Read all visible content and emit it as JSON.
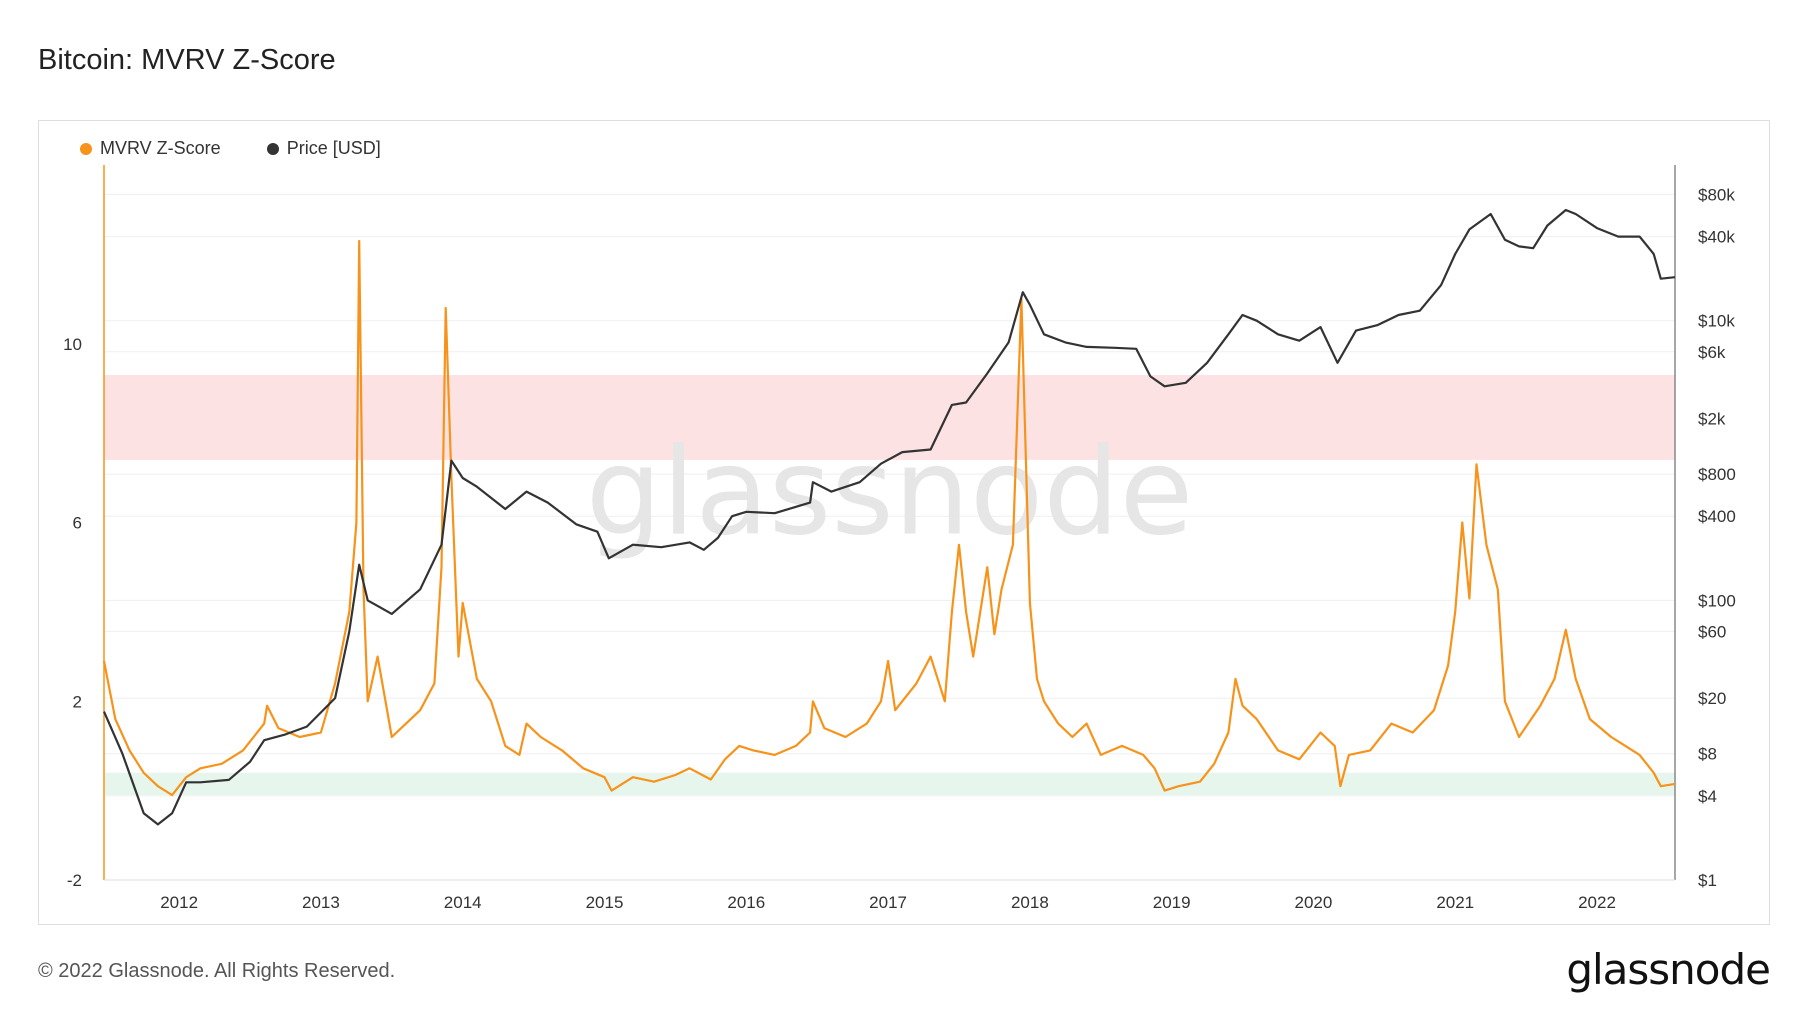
{
  "title": "Bitcoin: MVRV Z-Score",
  "legend": [
    {
      "label": "MVRV Z-Score",
      "color": "#f7931a"
    },
    {
      "label": "Price [USD]",
      "color": "#333333"
    }
  ],
  "watermark": "glassnode",
  "footer": {
    "copyright": "© 2022 Glassnode. All Rights Reserved.",
    "logo": "glassnode"
  },
  "chart_data": {
    "type": "line",
    "title": "Bitcoin: MVRV Z-Score",
    "xlabel": "",
    "ylabel": "",
    "x_ticks": [
      "2012",
      "2013",
      "2014",
      "2015",
      "2016",
      "2017",
      "2018",
      "2019",
      "2020",
      "2021",
      "2022"
    ],
    "x_range": [
      2011.47,
      2022.55
    ],
    "y_left": {
      "ticks": [
        -2,
        2,
        6,
        10
      ],
      "range": [
        -2.0,
        14.0
      ]
    },
    "y_right": {
      "scale": "log",
      "ticks": [
        "$1",
        "$4",
        "$8",
        "$20",
        "$60",
        "$100",
        "$400",
        "$800",
        "$2k",
        "$6k",
        "$10k",
        "$40k",
        "$80k"
      ],
      "tick_values": [
        1,
        4,
        8,
        20,
        60,
        100,
        400,
        800,
        2000,
        6000,
        10000,
        40000,
        80000
      ],
      "range": [
        1,
        130000
      ]
    },
    "bands": [
      {
        "name": "red-zone",
        "from": 7.4,
        "to": 9.3,
        "color": "#fde2e4"
      },
      {
        "name": "green-zone",
        "from": -0.1,
        "to": 0.4,
        "color": "#e6f6ec"
      }
    ],
    "grid": true,
    "legend_position": "top-left",
    "series": [
      {
        "name": "MVRV Z-Score",
        "axis": "left",
        "color": "#f7931a",
        "points": [
          [
            2011.47,
            2.9
          ],
          [
            2011.55,
            1.6
          ],
          [
            2011.65,
            0.9
          ],
          [
            2011.75,
            0.4
          ],
          [
            2011.85,
            0.1
          ],
          [
            2011.95,
            -0.1
          ],
          [
            2012.05,
            0.3
          ],
          [
            2012.15,
            0.5
          ],
          [
            2012.3,
            0.6
          ],
          [
            2012.45,
            0.9
          ],
          [
            2012.6,
            1.5
          ],
          [
            2012.62,
            1.9
          ],
          [
            2012.7,
            1.4
          ],
          [
            2012.85,
            1.2
          ],
          [
            2013.0,
            1.3
          ],
          [
            2013.1,
            2.4
          ],
          [
            2013.2,
            4.0
          ],
          [
            2013.25,
            6.0
          ],
          [
            2013.27,
            12.3
          ],
          [
            2013.3,
            4.5
          ],
          [
            2013.33,
            2.0
          ],
          [
            2013.4,
            3.0
          ],
          [
            2013.5,
            1.2
          ],
          [
            2013.6,
            1.5
          ],
          [
            2013.7,
            1.8
          ],
          [
            2013.8,
            2.4
          ],
          [
            2013.85,
            5.0
          ],
          [
            2013.88,
            10.8
          ],
          [
            2013.92,
            7.0
          ],
          [
            2013.97,
            3.0
          ],
          [
            2014.0,
            4.2
          ],
          [
            2014.1,
            2.5
          ],
          [
            2014.2,
            2.0
          ],
          [
            2014.3,
            1.0
          ],
          [
            2014.4,
            0.8
          ],
          [
            2014.45,
            1.5
          ],
          [
            2014.55,
            1.2
          ],
          [
            2014.7,
            0.9
          ],
          [
            2014.85,
            0.5
          ],
          [
            2015.0,
            0.3
          ],
          [
            2015.05,
            0.0
          ],
          [
            2015.2,
            0.3
          ],
          [
            2015.35,
            0.2
          ],
          [
            2015.5,
            0.35
          ],
          [
            2015.6,
            0.5
          ],
          [
            2015.75,
            0.25
          ],
          [
            2015.85,
            0.7
          ],
          [
            2015.95,
            1.0
          ],
          [
            2016.05,
            0.9
          ],
          [
            2016.2,
            0.8
          ],
          [
            2016.35,
            1.0
          ],
          [
            2016.45,
            1.3
          ],
          [
            2016.47,
            2.0
          ],
          [
            2016.55,
            1.4
          ],
          [
            2016.7,
            1.2
          ],
          [
            2016.85,
            1.5
          ],
          [
            2016.95,
            2.0
          ],
          [
            2017.0,
            2.9
          ],
          [
            2017.05,
            1.8
          ],
          [
            2017.2,
            2.4
          ],
          [
            2017.3,
            3.0
          ],
          [
            2017.4,
            2.0
          ],
          [
            2017.45,
            4.0
          ],
          [
            2017.5,
            5.5
          ],
          [
            2017.55,
            4.0
          ],
          [
            2017.6,
            3.0
          ],
          [
            2017.7,
            5.0
          ],
          [
            2017.75,
            3.5
          ],
          [
            2017.8,
            4.5
          ],
          [
            2017.88,
            5.5
          ],
          [
            2017.94,
            11.0
          ],
          [
            2018.0,
            4.2
          ],
          [
            2018.05,
            2.5
          ],
          [
            2018.1,
            2.0
          ],
          [
            2018.2,
            1.5
          ],
          [
            2018.3,
            1.2
          ],
          [
            2018.4,
            1.5
          ],
          [
            2018.5,
            0.8
          ],
          [
            2018.65,
            1.0
          ],
          [
            2018.8,
            0.8
          ],
          [
            2018.88,
            0.5
          ],
          [
            2018.95,
            0.0
          ],
          [
            2019.05,
            0.1
          ],
          [
            2019.2,
            0.2
          ],
          [
            2019.3,
            0.6
          ],
          [
            2019.4,
            1.3
          ],
          [
            2019.45,
            2.5
          ],
          [
            2019.5,
            1.9
          ],
          [
            2019.6,
            1.6
          ],
          [
            2019.75,
            0.9
          ],
          [
            2019.9,
            0.7
          ],
          [
            2020.05,
            1.3
          ],
          [
            2020.15,
            1.0
          ],
          [
            2020.19,
            0.1
          ],
          [
            2020.25,
            0.8
          ],
          [
            2020.4,
            0.9
          ],
          [
            2020.55,
            1.5
          ],
          [
            2020.7,
            1.3
          ],
          [
            2020.85,
            1.8
          ],
          [
            2020.95,
            2.8
          ],
          [
            2021.0,
            4.0
          ],
          [
            2021.05,
            6.0
          ],
          [
            2021.1,
            4.3
          ],
          [
            2021.15,
            7.3
          ],
          [
            2021.22,
            5.5
          ],
          [
            2021.3,
            4.5
          ],
          [
            2021.35,
            2.0
          ],
          [
            2021.45,
            1.2
          ],
          [
            2021.6,
            1.9
          ],
          [
            2021.7,
            2.5
          ],
          [
            2021.78,
            3.6
          ],
          [
            2021.85,
            2.5
          ],
          [
            2021.95,
            1.6
          ],
          [
            2022.1,
            1.2
          ],
          [
            2022.2,
            1.0
          ],
          [
            2022.3,
            0.8
          ],
          [
            2022.4,
            0.4
          ],
          [
            2022.45,
            0.1
          ],
          [
            2022.55,
            0.15
          ]
        ]
      },
      {
        "name": "Price [USD]",
        "axis": "right",
        "color": "#333333",
        "points": [
          [
            2011.47,
            16
          ],
          [
            2011.6,
            8
          ],
          [
            2011.75,
            3
          ],
          [
            2011.85,
            2.5
          ],
          [
            2011.95,
            3
          ],
          [
            2012.05,
            5
          ],
          [
            2012.15,
            5
          ],
          [
            2012.35,
            5.2
          ],
          [
            2012.5,
            7
          ],
          [
            2012.6,
            10
          ],
          [
            2012.75,
            11
          ],
          [
            2012.9,
            12.5
          ],
          [
            2013.1,
            20
          ],
          [
            2013.2,
            60
          ],
          [
            2013.27,
            180
          ],
          [
            2013.33,
            100
          ],
          [
            2013.5,
            80
          ],
          [
            2013.7,
            120
          ],
          [
            2013.85,
            250
          ],
          [
            2013.92,
            1000
          ],
          [
            2014.0,
            750
          ],
          [
            2014.1,
            650
          ],
          [
            2014.3,
            450
          ],
          [
            2014.45,
            600
          ],
          [
            2014.6,
            500
          ],
          [
            2014.8,
            350
          ],
          [
            2014.95,
            310
          ],
          [
            2015.03,
            200
          ],
          [
            2015.2,
            250
          ],
          [
            2015.4,
            240
          ],
          [
            2015.6,
            260
          ],
          [
            2015.7,
            230
          ],
          [
            2015.8,
            280
          ],
          [
            2015.9,
            400
          ],
          [
            2016.0,
            430
          ],
          [
            2016.2,
            420
          ],
          [
            2016.45,
            500
          ],
          [
            2016.47,
            700
          ],
          [
            2016.6,
            600
          ],
          [
            2016.8,
            700
          ],
          [
            2016.95,
            950
          ],
          [
            2017.1,
            1150
          ],
          [
            2017.3,
            1200
          ],
          [
            2017.45,
            2500
          ],
          [
            2017.55,
            2600
          ],
          [
            2017.7,
            4200
          ],
          [
            2017.85,
            7000
          ],
          [
            2017.95,
            16000
          ],
          [
            2018.0,
            13000
          ],
          [
            2018.1,
            8000
          ],
          [
            2018.25,
            7000
          ],
          [
            2018.4,
            6500
          ],
          [
            2018.6,
            6400
          ],
          [
            2018.75,
            6300
          ],
          [
            2018.85,
            4000
          ],
          [
            2018.95,
            3400
          ],
          [
            2019.1,
            3600
          ],
          [
            2019.25,
            5000
          ],
          [
            2019.4,
            8000
          ],
          [
            2019.5,
            11000
          ],
          [
            2019.6,
            10000
          ],
          [
            2019.75,
            8000
          ],
          [
            2019.9,
            7200
          ],
          [
            2020.05,
            9000
          ],
          [
            2020.17,
            5000
          ],
          [
            2020.3,
            8500
          ],
          [
            2020.45,
            9300
          ],
          [
            2020.6,
            11000
          ],
          [
            2020.75,
            11800
          ],
          [
            2020.9,
            18000
          ],
          [
            2021.0,
            30000
          ],
          [
            2021.1,
            45000
          ],
          [
            2021.25,
            58000
          ],
          [
            2021.35,
            38000
          ],
          [
            2021.45,
            34000
          ],
          [
            2021.55,
            33000
          ],
          [
            2021.65,
            48000
          ],
          [
            2021.78,
            62000
          ],
          [
            2021.85,
            58000
          ],
          [
            2022.0,
            46000
          ],
          [
            2022.15,
            40000
          ],
          [
            2022.3,
            40000
          ],
          [
            2022.4,
            30000
          ],
          [
            2022.45,
            20000
          ],
          [
            2022.55,
            20500
          ]
        ]
      }
    ]
  }
}
